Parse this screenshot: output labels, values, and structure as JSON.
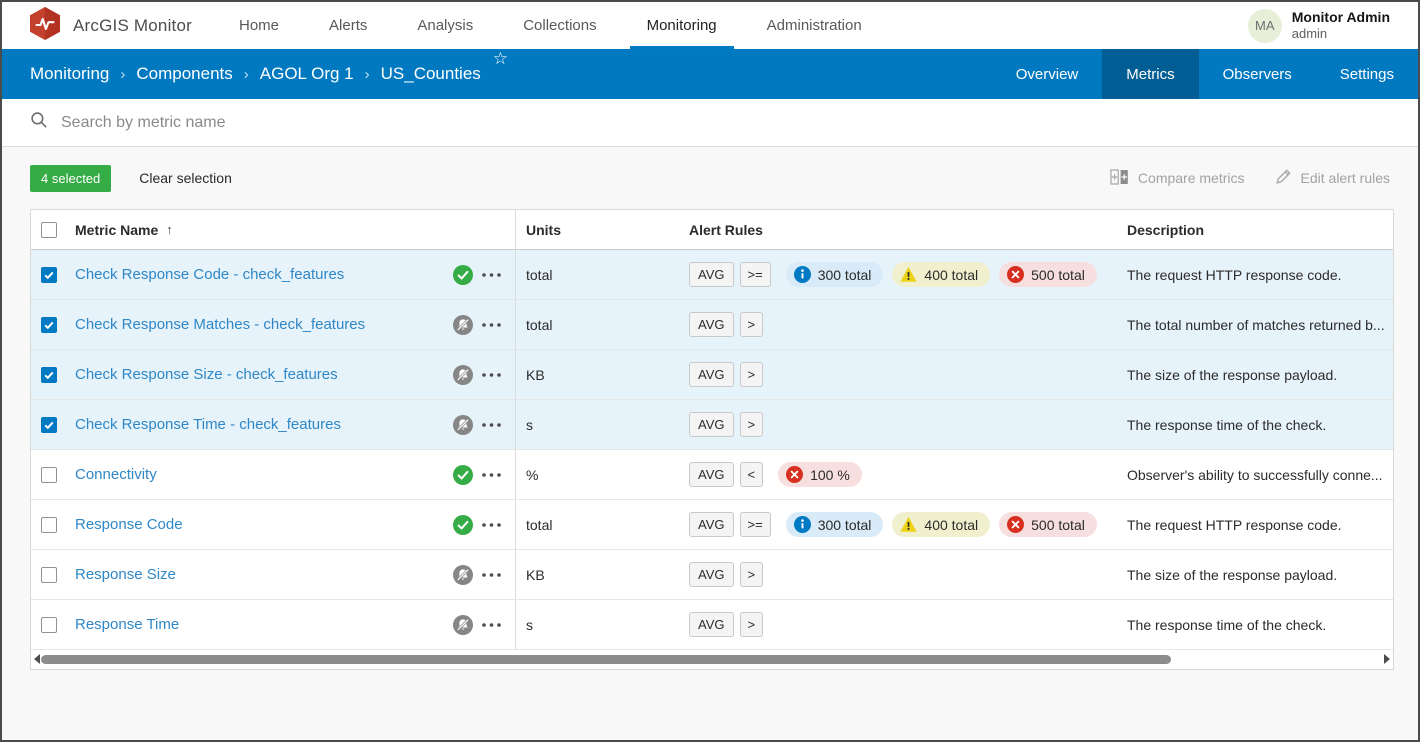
{
  "app": {
    "brand": "ArcGIS Monitor"
  },
  "topnav": {
    "items": [
      {
        "label": "Home",
        "active": false
      },
      {
        "label": "Alerts",
        "active": false
      },
      {
        "label": "Analysis",
        "active": false
      },
      {
        "label": "Collections",
        "active": false
      },
      {
        "label": "Monitoring",
        "active": true
      },
      {
        "label": "Administration",
        "active": false
      }
    ]
  },
  "user": {
    "initials": "MA",
    "name": "Monitor Admin",
    "role": "admin"
  },
  "breadcrumb": {
    "items": [
      "Monitoring",
      "Components",
      "AGOL Org 1",
      "US_Counties"
    ]
  },
  "subtabs": {
    "items": [
      {
        "label": "Overview",
        "active": false
      },
      {
        "label": "Metrics",
        "active": true
      },
      {
        "label": "Observers",
        "active": false
      },
      {
        "label": "Settings",
        "active": false
      }
    ]
  },
  "search": {
    "placeholder": "Search by metric name"
  },
  "selection": {
    "badge": "4 selected",
    "clear": "Clear selection"
  },
  "toolbar": {
    "compare_label": "Compare metrics",
    "edit_label": "Edit alert rules"
  },
  "icons": {
    "star": "☆",
    "sort_ascending": "↑",
    "separator": "›"
  },
  "colors": {
    "accent": "#007ac2",
    "bar_blue": "#0079c1",
    "active_tab_blue": "#005e95",
    "selected_row": "#e7f3fb",
    "status_ok_green": "#35ac46",
    "status_muted_gray": "#868686",
    "badge_green": "#35ac46",
    "critical_red": "#d83020",
    "warning_yellow": "#edd317",
    "info_blue": "#007ac2"
  },
  "table": {
    "columns": {
      "name": "Metric Name",
      "units": "Units",
      "alerts": "Alert Rules",
      "description": "Description"
    },
    "rows": [
      {
        "name": "Check Response Code - check_features",
        "selected": true,
        "status": "ok",
        "units": "total",
        "agg": "AVG",
        "op": ">=",
        "thresholds": [
          {
            "level": "info",
            "label": "300 total"
          },
          {
            "level": "warning",
            "label": "400 total"
          },
          {
            "level": "critical",
            "label": "500 total"
          }
        ],
        "description": "The request HTTP response code."
      },
      {
        "name": "Check Response Matches - check_features",
        "selected": true,
        "status": "alerts-disabled",
        "units": "total",
        "agg": "AVG",
        "op": ">",
        "thresholds": [],
        "description": "The total number of matches returned b..."
      },
      {
        "name": "Check Response Size - check_features",
        "selected": true,
        "status": "alerts-disabled",
        "units": "KB",
        "agg": "AVG",
        "op": ">",
        "thresholds": [],
        "description": "The size of the response payload."
      },
      {
        "name": "Check Response Time - check_features",
        "selected": true,
        "status": "alerts-disabled",
        "units": "s",
        "agg": "AVG",
        "op": ">",
        "thresholds": [],
        "description": "The response time of the check."
      },
      {
        "name": "Connectivity",
        "selected": false,
        "status": "ok",
        "units": "%",
        "agg": "AVG",
        "op": "<",
        "thresholds": [
          {
            "level": "critical",
            "label": "100 %"
          }
        ],
        "description": "Observer's ability to successfully conne..."
      },
      {
        "name": "Response Code",
        "selected": false,
        "status": "ok",
        "units": "total",
        "agg": "AVG",
        "op": ">=",
        "thresholds": [
          {
            "level": "info",
            "label": "300 total"
          },
          {
            "level": "warning",
            "label": "400 total"
          },
          {
            "level": "critical",
            "label": "500 total"
          }
        ],
        "description": "The request HTTP response code."
      },
      {
        "name": "Response Size",
        "selected": false,
        "status": "alerts-disabled",
        "units": "KB",
        "agg": "AVG",
        "op": ">",
        "thresholds": [],
        "description": "The size of the response payload."
      },
      {
        "name": "Response Time",
        "selected": false,
        "status": "alerts-disabled",
        "units": "s",
        "agg": "AVG",
        "op": ">",
        "thresholds": [],
        "description": "The response time of the check."
      }
    ]
  }
}
